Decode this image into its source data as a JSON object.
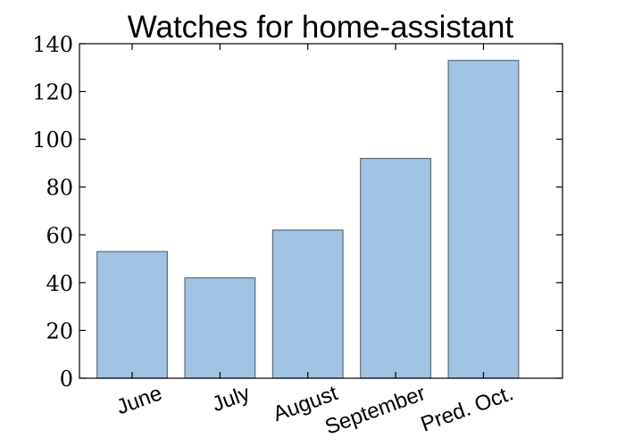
{
  "chart_data": {
    "type": "bar",
    "title": "Watches for home-assistant",
    "categories": [
      "June",
      "July",
      "August",
      "September",
      "Pred. Oct."
    ],
    "values": [
      53,
      42,
      62,
      92,
      133
    ],
    "yticks": [
      0,
      20,
      40,
      60,
      80,
      100,
      120,
      140
    ],
    "ylim": [
      0,
      140
    ],
    "xlabel": "",
    "ylabel": "",
    "grid": false,
    "bar_color": "#a1c4e5",
    "bar_edge_color": "#5f6b75"
  }
}
